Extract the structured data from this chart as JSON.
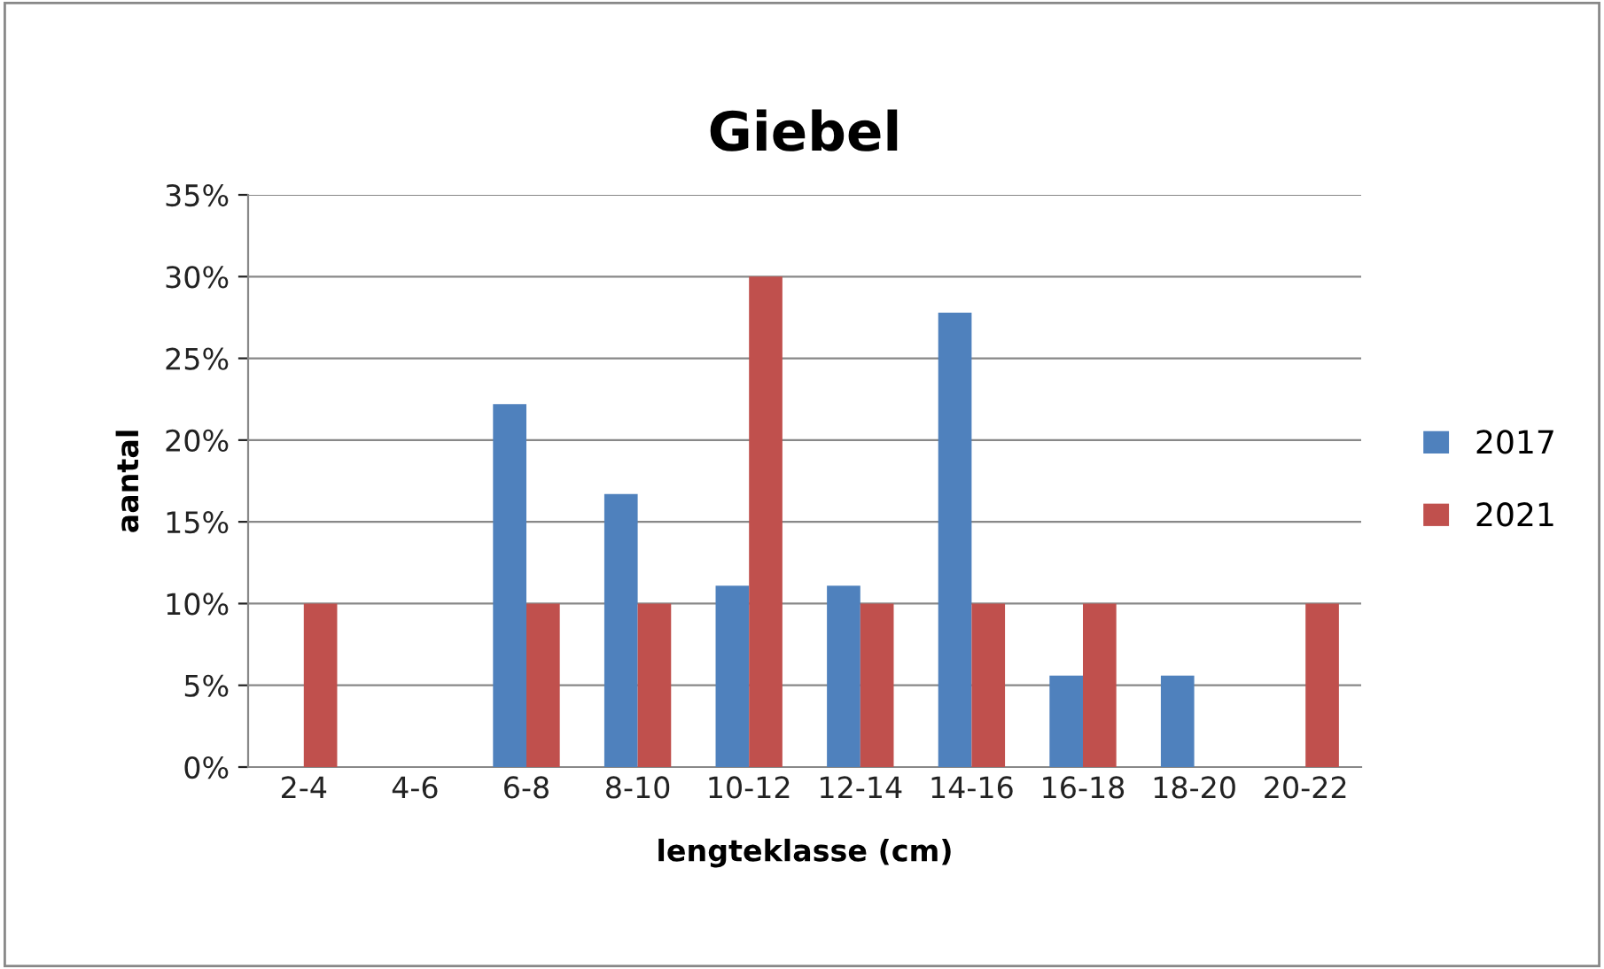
{
  "chart_data": {
    "type": "bar",
    "title": "Giebel",
    "xlabel": "lengteklasse (cm)",
    "ylabel": "aantal",
    "categories": [
      "2-4",
      "4-6",
      "6-8",
      "8-10",
      "10-12",
      "12-14",
      "14-16",
      "16-18",
      "18-20",
      "20-22"
    ],
    "series": [
      {
        "name": "2017",
        "color": "#4f81bd",
        "values": [
          0,
          0,
          22.2,
          16.7,
          11.1,
          11.1,
          27.8,
          5.6,
          5.6,
          0
        ]
      },
      {
        "name": "2021",
        "color": "#c0504d",
        "values": [
          10,
          0,
          10,
          10,
          30,
          10,
          10,
          10,
          0,
          10
        ]
      }
    ],
    "ylim": [
      0,
      35
    ],
    "yticks": [
      {
        "value": 0,
        "label": "0%"
      },
      {
        "value": 5,
        "label": "5%"
      },
      {
        "value": 10,
        "label": "10%"
      },
      {
        "value": 15,
        "label": "15%"
      },
      {
        "value": 20,
        "label": "20%"
      },
      {
        "value": 25,
        "label": "25%"
      },
      {
        "value": 30,
        "label": "30%"
      },
      {
        "value": 35,
        "label": "35%"
      }
    ],
    "grid": "y",
    "legend": "right"
  }
}
